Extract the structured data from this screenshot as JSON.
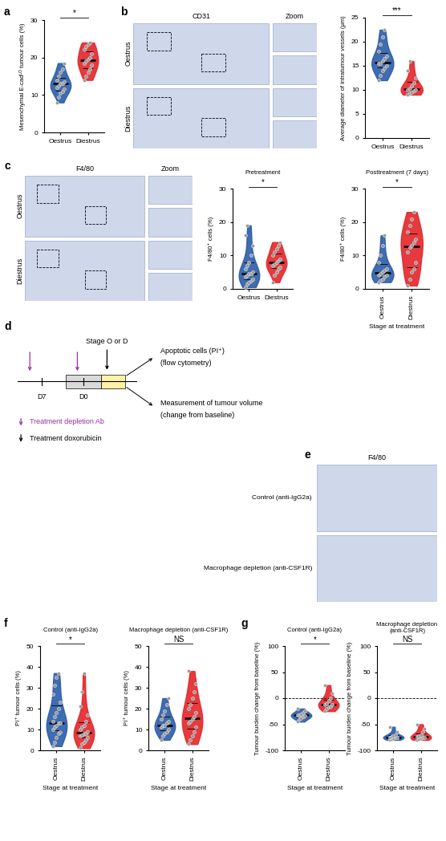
{
  "panel_letters": [
    "a",
    "b",
    "c",
    "d",
    "e",
    "f",
    "g"
  ],
  "chart_data": [
    {
      "type": "violin",
      "y_label": "Mesenchymal E-cadᴸᴼ tumour cells (%)",
      "categories": [
        "Oestrus",
        "Diestrus"
      ],
      "colors": [
        "#2b5ca8",
        "#e3262a"
      ],
      "values": [
        [
          8,
          9.5,
          10.5,
          11,
          11.5,
          12,
          12.5,
          13,
          13,
          13.5,
          14,
          15,
          16,
          17,
          18.5
        ],
        [
          14,
          15,
          16,
          17,
          18,
          18.5,
          19,
          19.5,
          20,
          21,
          22,
          23,
          23.5,
          24
        ]
      ],
      "significance": "*",
      "ylim": [
        0,
        30
      ],
      "yticks": [
        0,
        10,
        20,
        30
      ]
    },
    {
      "type": "violin",
      "y_label": "Average diameter of intratumour vessels (μm)",
      "categories": [
        "Oestrus",
        "Diestrus"
      ],
      "colors": [
        "#2b5ca8",
        "#e3262a"
      ],
      "values": [
        [
          12,
          13,
          14,
          14.5,
          15,
          15.5,
          15.5,
          16,
          16.5,
          17,
          18,
          19.5,
          21,
          22.5
        ],
        [
          9,
          9.3,
          9.5,
          9.8,
          10,
          10,
          10.3,
          10.8,
          11.5,
          12.5,
          14,
          16
        ]
      ],
      "significance": "***",
      "ylim": [
        0,
        25
      ],
      "yticks": [
        0,
        5,
        10,
        15,
        20,
        25
      ]
    },
    {
      "type": "violin",
      "title": "Pretreatment",
      "y_label": "F4/80⁺ cells (%)",
      "categories": [
        "Oestrus",
        "Diestrus"
      ],
      "colors": [
        "#2b5ca8",
        "#e3262a"
      ],
      "values": [
        [
          0.5,
          1.5,
          2,
          2.5,
          3,
          3.5,
          4,
          4.5,
          4.5,
          5,
          6,
          7,
          8,
          10,
          13,
          16,
          19
        ],
        [
          2,
          4,
          5,
          6,
          6.5,
          7,
          7.5,
          8,
          8.5,
          9,
          10,
          11,
          12,
          13,
          14
        ]
      ],
      "significance": "*",
      "ylim": [
        0,
        30
      ],
      "yticks": [
        0,
        10,
        20,
        30
      ]
    },
    {
      "type": "violin",
      "title": "Posttreatment (7 days)",
      "y_label": "F4/80⁺ cells (%)",
      "x_label": "Stage at treatment",
      "categories": [
        "Oestrus",
        "Diestrus"
      ],
      "colors": [
        "#2b5ca8",
        "#e3262a"
      ],
      "values": [
        [
          2,
          2.5,
          3,
          3.5,
          4,
          4,
          4.5,
          5,
          5.5,
          6,
          8,
          10,
          13,
          16
        ],
        [
          1,
          3,
          5,
          6,
          8,
          11,
          12.5,
          13,
          14,
          15,
          17,
          19,
          21,
          23
        ]
      ],
      "significance": "*",
      "ylim": [
        0,
        30
      ],
      "yticks": [
        0,
        10,
        20,
        30
      ]
    },
    {
      "type": "violin",
      "title": "Control (anti-IgG2a)",
      "y_label": "PI⁺ tumour cells (%)",
      "x_label": "Stage at treatment",
      "categories": [
        "Oestrus",
        "Diestrus"
      ],
      "colors": [
        "#2b5ca8",
        "#e3262a"
      ],
      "values": [
        [
          2,
          4,
          6,
          8,
          9,
          10,
          11,
          12,
          13,
          13,
          14,
          16,
          18,
          20,
          23,
          27,
          31,
          35,
          37
        ],
        [
          1,
          3,
          4,
          5,
          6,
          7,
          7.5,
          8,
          8,
          9,
          10,
          11,
          12,
          14,
          17,
          21,
          28,
          37
        ]
      ],
      "significance": "*",
      "ylim": [
        0,
        50
      ],
      "yticks": [
        0,
        10,
        20,
        30,
        40,
        50
      ]
    },
    {
      "type": "violin",
      "title": "Macrophage depletion (anti-CSF1R)",
      "y_label": "PI⁺ tumour cells (%)",
      "x_label": "Stage at treatment",
      "categories": [
        "Oestrus",
        "Diestrus"
      ],
      "colors": [
        "#2b5ca8",
        "#e3262a"
      ],
      "values": [
        [
          5,
          7,
          8,
          9,
          10,
          11,
          12,
          12,
          13,
          14,
          15,
          17,
          19,
          22,
          25
        ],
        [
          3,
          5,
          7,
          9,
          11,
          13,
          14,
          15,
          16,
          18,
          20,
          22,
          25,
          28,
          32,
          38
        ]
      ],
      "significance": "NS",
      "ylim": [
        0,
        50
      ],
      "yticks": [
        0,
        10,
        20,
        30,
        40,
        50
      ]
    },
    {
      "type": "violin",
      "title": "Control (anti-IgG2a)",
      "y_label": "Tumour burden change from baseline (%)",
      "x_label": "Stage at treatment",
      "categories": [
        "Oestrus",
        "Diestrus"
      ],
      "colors": [
        "#2b5ca8",
        "#e3262a"
      ],
      "values": [
        [
          -45,
          -40,
          -38,
          -36,
          -34,
          -33,
          -32,
          -30,
          -28,
          -25,
          -20
        ],
        [
          -25,
          -20,
          -17,
          -15,
          -13,
          -12,
          -10,
          -5,
          0,
          10,
          25
        ]
      ],
      "significance": "*",
      "baseline": 0,
      "ylim": [
        -100,
        100
      ],
      "yticks": [
        -100,
        -50,
        0,
        50,
        100
      ]
    },
    {
      "type": "violin",
      "title": "Macrophage depletion (anti-CSF1R)",
      "y_label": "Tumour burden change from baseline (%)",
      "x_label": "Stage at treatment",
      "categories": [
        "Oestrus",
        "Diestrus"
      ],
      "colors": [
        "#2b5ca8",
        "#e3262a"
      ],
      "values": [
        [
          -80,
          -78,
          -77,
          -76,
          -75,
          -75,
          -74,
          -73,
          -70,
          -65,
          -55
        ],
        [
          -80,
          -79,
          -77,
          -76,
          -75,
          -74,
          -72,
          -70,
          -65,
          -58,
          -50
        ]
      ],
      "significance": "NS",
      "baseline": 0,
      "ylim": [
        -100,
        100
      ],
      "yticks": [
        -100,
        -50,
        0,
        50,
        100
      ]
    }
  ],
  "micrographs": {
    "b": {
      "stain": "CD31",
      "zoom": "Zoom",
      "rows": [
        "Oestrus",
        "Diestrus"
      ]
    },
    "c": {
      "stain": "F4/80",
      "zoom": "Zoom",
      "rows": [
        "Oestrus",
        "Diestrus"
      ]
    },
    "e": {
      "stain": "F4/80",
      "rows": [
        "Control (anti-IgG2a)",
        "Macrophage depletion (anti-CSF1R)"
      ]
    }
  },
  "schematic": {
    "stage": "Stage O or D",
    "day_labels": [
      "D7",
      "D0"
    ],
    "readouts": [
      [
        "Apoptotic cells (PI⁺)",
        "(flow cytometry)"
      ],
      [
        "Measurement of tumour volume",
        "(change from baseline)"
      ]
    ],
    "legend": [
      {
        "label": "Treatment depletion Ab",
        "color": "#9b2f9e"
      },
      {
        "label": "Treatment doxorubicin",
        "color": "#000000"
      }
    ]
  }
}
